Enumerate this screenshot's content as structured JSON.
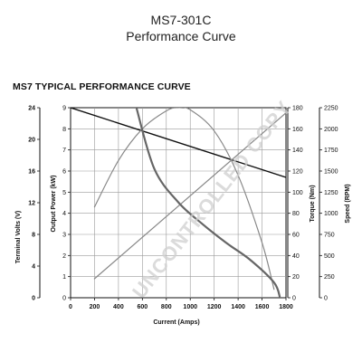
{
  "header": {
    "title": "MS7-301C",
    "subtitle": "Performance Curve"
  },
  "watermark": "UNCONTROLLED COPY",
  "chart_data": {
    "type": "line",
    "title": "MS7 TYPICAL PERFORMANCE CURVE",
    "xlabel": "Current (Amps)",
    "xlim": [
      0,
      1800
    ],
    "x_ticks": [
      "0",
      "200",
      "400",
      "600",
      "800",
      "1000",
      "1200",
      "1400",
      "1600",
      "1800"
    ],
    "grid": true,
    "axes": [
      {
        "id": "voltage",
        "label": "Terminal Volts (V)",
        "lim": [
          0,
          24
        ],
        "ticks": [
          "0",
          "4",
          "8",
          "12",
          "16",
          "20",
          "24"
        ]
      },
      {
        "id": "power",
        "label": "Output Power (kW)",
        "lim": [
          0,
          9
        ],
        "ticks": [
          "0",
          "1",
          "2",
          "3",
          "4",
          "5",
          "6",
          "7",
          "8",
          "9"
        ]
      },
      {
        "id": "torque",
        "label": "Torque (Nm)",
        "lim": [
          0,
          180
        ],
        "ticks": [
          "0",
          "20",
          "40",
          "60",
          "80",
          "100",
          "120",
          "140",
          "160",
          "180"
        ]
      },
      {
        "id": "speed",
        "label": "Speed (RPM)",
        "lim": [
          0,
          2250
        ],
        "ticks": [
          "0",
          "250",
          "500",
          "750",
          "1000",
          "1250",
          "1500",
          "1750",
          "2000",
          "2250"
        ]
      }
    ],
    "series": [
      {
        "axis": "voltage",
        "color": "#111111",
        "x": [
          0,
          1800
        ],
        "y": [
          24,
          15.2
        ]
      },
      {
        "axis": "power",
        "color": "#888888",
        "x": [
          200,
          400,
          600,
          800,
          900,
          1000,
          1200,
          1400,
          1600,
          1700
        ],
        "y": [
          4.3,
          6.5,
          8.0,
          8.85,
          9.0,
          8.9,
          7.9,
          5.8,
          2.6,
          0.4
        ]
      },
      {
        "axis": "torque",
        "color": "#888888",
        "x": [
          200,
          1850
        ],
        "y": [
          18,
          180
        ]
      },
      {
        "axis": "speed",
        "color": "#666666",
        "x": [
          550,
          700,
          900,
          1100,
          1300,
          1500,
          1700,
          1750
        ],
        "y": [
          2250,
          1525,
          1130,
          875,
          650,
          450,
          180,
          0
        ]
      }
    ]
  }
}
